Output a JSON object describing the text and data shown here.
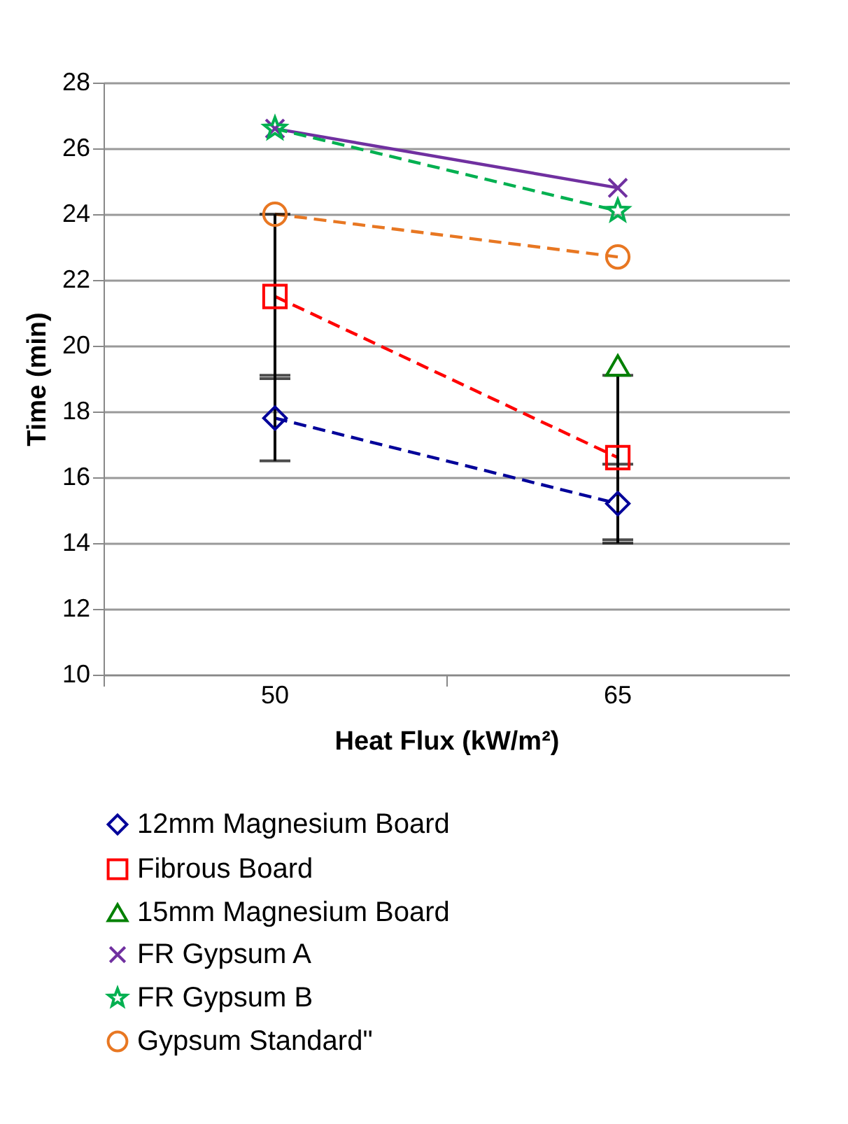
{
  "chart_data": {
    "type": "line",
    "xlabel": "Heat Flux (kW/m²)",
    "ylabel": "Time (min)",
    "categories": [
      "50",
      "65"
    ],
    "series": [
      {
        "name": "12mm Magnesium Board",
        "color": "#000099",
        "values": [
          17.8,
          15.2
        ],
        "errors": [
          1.3,
          1.2
        ],
        "marker": "diamond",
        "line_style": "dashed"
      },
      {
        "name": "Fibrous Board",
        "color": "#ff0000",
        "values": [
          21.5,
          16.6
        ],
        "errors": [
          2.5,
          2.5
        ],
        "marker": "square",
        "line_style": "dashed"
      },
      {
        "name": "15mm Magnesium Board",
        "type": "scatter",
        "color": "#008000",
        "values": [
          null,
          19.4
        ],
        "marker": "triangle"
      },
      {
        "name": "FR Gypsum A",
        "color": "#7030a0",
        "values": [
          26.6,
          24.8
        ],
        "marker": "cross",
        "line_style": "solid"
      },
      {
        "name": "FR Gypsum B",
        "color": "#00b050",
        "values": [
          26.6,
          24.1
        ],
        "marker": "star",
        "line_style": "dashed"
      },
      {
        "name": "Gypsum Standard\"",
        "color": "#e87722",
        "values": [
          24.0,
          22.7
        ],
        "marker": "circle",
        "line_style": "dashed"
      }
    ],
    "ylim": [
      10,
      28
    ],
    "yticks": [
      10,
      12,
      14,
      16,
      18,
      20,
      22,
      24,
      26,
      28
    ],
    "grid": "y",
    "legend": "bottom"
  }
}
